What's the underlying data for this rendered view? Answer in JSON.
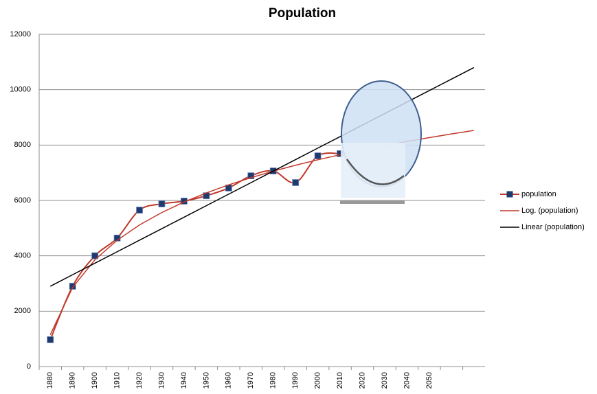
{
  "chart_data": {
    "type": "line",
    "title": "Population",
    "categories": [
      "1880",
      "1890",
      "1900",
      "1910",
      "1920",
      "1930",
      "1940",
      "1950",
      "1960",
      "1970",
      "1980",
      "1990",
      "2000",
      "2010",
      "2020",
      "2030",
      "2040",
      "2050",
      null,
      null
    ],
    "series": [
      {
        "name": "population",
        "color": "#c0392b",
        "marker_color": "#1f3a6e",
        "role": "data",
        "values": [
          970,
          2900,
          4000,
          4640,
          5650,
          5875,
          5975,
          6170,
          6450,
          6890,
          7065,
          6645,
          7610,
          7690,
          null,
          null,
          null,
          null,
          null,
          null
        ]
      },
      {
        "name": "Log. (population)",
        "color": "#c0392b",
        "role": "trend",
        "values": [
          1150,
          2857,
          3856,
          4564,
          5114,
          5563,
          5943,
          6272,
          6562,
          6821,
          7056,
          7270,
          7467,
          7650,
          7820,
          7979,
          8128,
          8269,
          8402,
          8530
        ]
      },
      {
        "name": "Linear (population)",
        "color": "#000000",
        "role": "trend",
        "values": [
          2900,
          3316,
          3732,
          4147,
          4563,
          4979,
          5395,
          5811,
          6226,
          6642,
          7058,
          7474,
          7890,
          8305,
          8721,
          9137,
          9553,
          9969,
          10384,
          10800
        ]
      }
    ],
    "ylim": [
      0,
      12000
    ],
    "yticks": [
      0,
      2000,
      4000,
      6000,
      8000,
      10000,
      12000
    ],
    "grid": true,
    "legend": "right"
  }
}
